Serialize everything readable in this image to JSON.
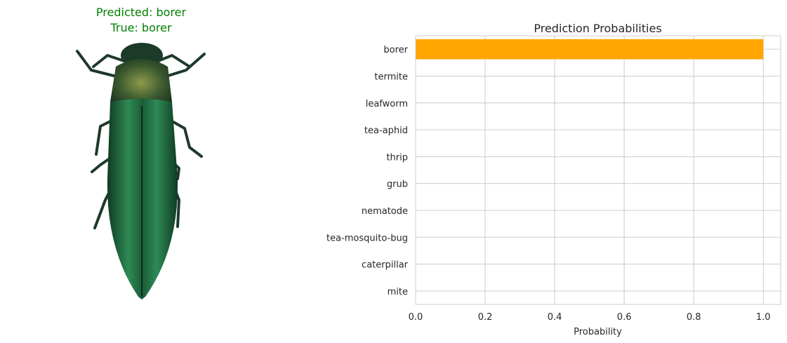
{
  "image_panel": {
    "predicted_text": "Predicted: borer",
    "true_text": "True: borer",
    "title_color": "#008000",
    "image_subject": "green-borer-beetle"
  },
  "chart_data": {
    "type": "bar",
    "orientation": "horizontal",
    "title": "Prediction Probabilities",
    "xlabel": "Probability",
    "ylabel": "",
    "categories": [
      "mite",
      "caterpillar",
      "tea-mosquito-bug",
      "nematode",
      "grub",
      "thrip",
      "tea-aphid",
      "leafworm",
      "termite",
      "borer"
    ],
    "values": [
      0.0,
      0.0,
      0.0,
      0.0,
      0.0,
      0.0,
      0.0,
      0.0,
      0.0,
      1.0
    ],
    "xlim": [
      0.0,
      1.05
    ],
    "xticks": [
      "0.0",
      "0.2",
      "0.4",
      "0.6",
      "0.8",
      "1.0"
    ],
    "xtick_values": [
      0.0,
      0.2,
      0.4,
      0.6,
      0.8,
      1.0
    ],
    "grid": true,
    "bar_color": "#FFA500",
    "grid_color": "#CCCCCC"
  }
}
